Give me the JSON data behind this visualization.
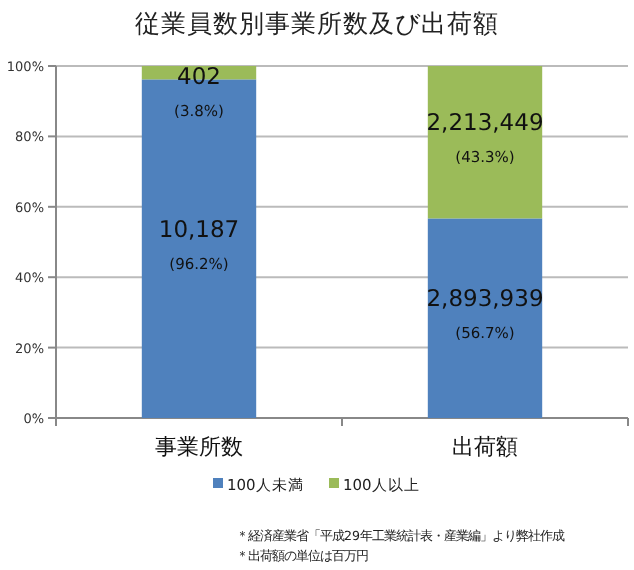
{
  "chart_data": {
    "type": "bar",
    "title": "従業員数別事業所数及び出荷額",
    "categories": [
      "事業所数",
      "出荷額"
    ],
    "stacked": true,
    "ylim": [
      0,
      100
    ],
    "yticks": [
      {
        "value": 0,
        "label": "0%"
      },
      {
        "value": 20,
        "label": "20%"
      },
      {
        "value": 40,
        "label": "40%"
      },
      {
        "value": 60,
        "label": "60%"
      },
      {
        "value": 80,
        "label": "80%"
      },
      {
        "value": 100,
        "label": "100%"
      }
    ],
    "grid": "y",
    "legend": "bottom",
    "series": [
      {
        "name": "100人未満",
        "color": "#4f81bd",
        "values": [
          96.2,
          56.7
        ],
        "value_labels": [
          "10,187\n(96.2%)",
          "2,893,939\n(56.7%)"
        ]
      },
      {
        "name": "100人以上",
        "color": "#9bbb59",
        "values": [
          3.8,
          43.3
        ],
        "value_labels": [
          "402\n(3.8%)",
          "2,213,449\n(43.3%)"
        ]
      }
    ],
    "annotations": [
      "＊経済産業省「平成29年工業統計表・産業編」より弊社作成",
      "＊出荷額の単位は百万円"
    ]
  }
}
